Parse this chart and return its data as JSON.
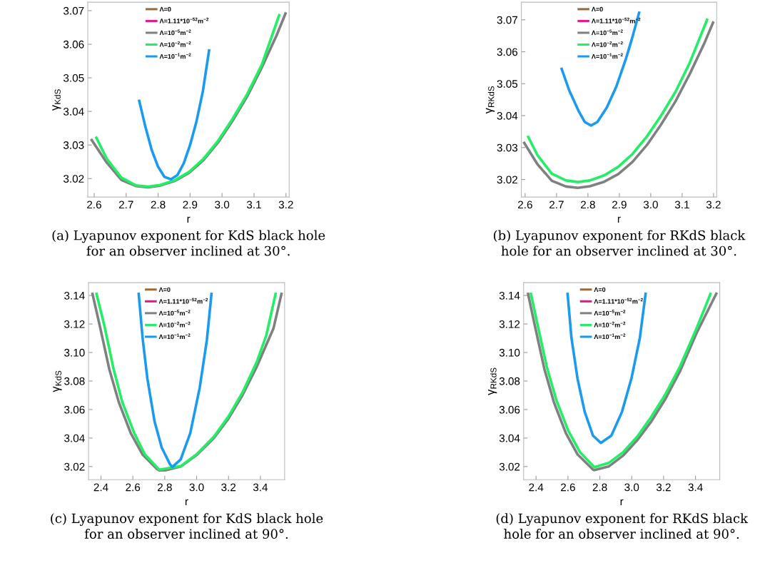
{
  "chart_data": [
    {
      "type": "line",
      "xlabel": "r",
      "ylabel": "γ$_{KdS}$",
      "xlim": [
        2.58,
        3.21
      ],
      "xticks": [
        {
          "value": 2.6,
          "label": "2.6"
        },
        {
          "value": 2.7,
          "label": "2.7"
        },
        {
          "value": 2.8,
          "label": "2.8"
        },
        {
          "value": 2.9,
          "label": "2.9"
        },
        {
          "value": 3.0,
          "label": "3.0"
        },
        {
          "value": 3.1,
          "label": "3.1"
        },
        {
          "value": 3.2,
          "label": "3.2"
        }
      ],
      "ylim": [
        3.0145,
        3.0725
      ],
      "yticks": [
        3.02,
        3.03,
        3.04,
        3.05,
        3.06,
        3.07
      ],
      "legend": "top",
      "grid": false,
      "annotations": [
        "(a) Lyapunov exponent for KdS black hole\nfor an observer inclined at 30°."
      ],
      "series": [
        {
          "name": "Λ=0",
          "color": "#9c6b3a"
        },
        {
          "name": "Λ=1.11*10$^{−52}$m$^{−2}$",
          "color": "#e8168c"
        },
        {
          "name": "Λ=10$^{−5}$m$^{−2}$",
          "color": "#808080",
          "x": [
            2.59,
            2.639,
            2.685,
            2.73,
            2.768,
            2.806,
            2.852,
            2.897,
            2.942,
            2.988,
            3.033,
            3.079,
            3.124,
            3.17,
            3.2
          ],
          "values": [
            3.0318,
            3.0248,
            3.0196,
            3.0178,
            3.0174,
            3.0179,
            3.0193,
            3.0217,
            3.0255,
            3.0308,
            3.0372,
            3.0445,
            3.053,
            3.0625,
            3.0695
          ]
        },
        {
          "name": "Λ=10$^{−2}$m$^{−2}$",
          "color": "#22ee66",
          "x": [
            2.605,
            2.64,
            2.685,
            2.73,
            2.768,
            2.806,
            2.852,
            2.897,
            2.942,
            2.988,
            3.033,
            3.079,
            3.124,
            3.18
          ],
          "values": [
            3.0325,
            3.0258,
            3.0203,
            3.018,
            3.0176,
            3.0181,
            3.0195,
            3.022,
            3.0259,
            3.0313,
            3.0378,
            3.0452,
            3.0538,
            3.069
          ]
        },
        {
          "name": "Λ=10$^{−1}$m$^{−2}$",
          "color": "#1a9af0",
          "x": [
            2.74,
            2.76,
            2.78,
            2.8,
            2.82,
            2.84,
            2.86,
            2.88,
            2.9,
            2.92,
            2.94,
            2.96
          ],
          "values": [
            3.0435,
            3.0355,
            3.0285,
            3.0235,
            3.0205,
            3.0198,
            3.021,
            3.0245,
            3.03,
            3.037,
            3.046,
            3.0585
          ]
        }
      ]
    },
    {
      "type": "line",
      "xlabel": "r",
      "ylabel": "γ$_{RKdS}$",
      "xlim": [
        2.588,
        3.21
      ],
      "xticks": [
        {
          "value": 2.6,
          "label": "2.6"
        },
        {
          "value": 2.7,
          "label": "2.7"
        },
        {
          "value": 2.8,
          "label": "2.8"
        },
        {
          "value": 2.9,
          "label": "2.9"
        },
        {
          "value": 3.0,
          "label": "3.0"
        },
        {
          "value": 3.1,
          "label": "3.1"
        },
        {
          "value": 3.2,
          "label": "3.2"
        }
      ],
      "ylim": [
        3.0145,
        3.0755
      ],
      "yticks": [
        3.02,
        3.03,
        3.04,
        3.05,
        3.06,
        3.07
      ],
      "legend": "top",
      "grid": false,
      "annotations": [
        "(b) Lyapunov exponent for RKdS black\nhole for an observer inclined at 30°."
      ],
      "series": [
        {
          "name": "Λ=0",
          "color": "#9c6b3a"
        },
        {
          "name": "Λ=1.11*10$^{−52}$m$^{−2}$",
          "color": "#e8168c"
        },
        {
          "name": "Λ=10$^{−5}$m$^{−2}$",
          "color": "#808080",
          "x": [
            2.595,
            2.639,
            2.685,
            2.73,
            2.768,
            2.806,
            2.852,
            2.897,
            2.942,
            2.988,
            3.033,
            3.079,
            3.124,
            3.17,
            3.2
          ],
          "values": [
            3.0318,
            3.0248,
            3.0196,
            3.0178,
            3.0174,
            3.0179,
            3.0193,
            3.0217,
            3.0255,
            3.0308,
            3.0372,
            3.0445,
            3.053,
            3.0625,
            3.0695
          ]
        },
        {
          "name": "Λ=10$^{−2}$m$^{−2}$",
          "color": "#22ee66",
          "x": [
            2.608,
            2.64,
            2.685,
            2.73,
            2.768,
            2.806,
            2.852,
            2.897,
            2.942,
            2.988,
            3.033,
            3.079,
            3.124,
            3.181
          ],
          "values": [
            3.0337,
            3.0275,
            3.0218,
            3.0197,
            3.0192,
            3.0197,
            3.0213,
            3.024,
            3.028,
            3.0335,
            3.04,
            3.0475,
            3.0565,
            3.0704
          ]
        },
        {
          "name": "Λ=10$^{−1}$m$^{−2}$",
          "color": "#1a9af0",
          "x": [
            2.715,
            2.74,
            2.77,
            2.79,
            2.81,
            2.83,
            2.86,
            2.89,
            2.92,
            2.94,
            2.964
          ],
          "values": [
            3.055,
            3.048,
            3.0415,
            3.038,
            3.0369,
            3.038,
            3.0425,
            3.049,
            3.0575,
            3.064,
            3.0726
          ]
        }
      ]
    },
    {
      "type": "line",
      "xlabel": "r",
      "ylabel": "γ$_{KdS}$",
      "xlim": [
        2.322,
        3.552
      ],
      "xticks": [
        {
          "value": 2.4,
          "label": "2.4"
        },
        {
          "value": 2.6,
          "label": "2.6"
        },
        {
          "value": 2.8,
          "label": "2.8"
        },
        {
          "value": 3.0,
          "label": "3.0"
        },
        {
          "value": 3.2,
          "label": "3.2"
        },
        {
          "value": 3.4,
          "label": "3.4"
        }
      ],
      "ylim": [
        3.0108,
        3.149
      ],
      "yticks": [
        3.02,
        3.04,
        3.06,
        3.08,
        {
          "value": 3.1,
          "label": "3.10"
        },
        3.12,
        3.14
      ],
      "legend": "top",
      "grid": false,
      "annotations": [
        "(c) Lyapunov exponent for KdS black hole\nfor an observer inclined at 90°."
      ],
      "series": [
        {
          "name": "Λ=0",
          "color": "#9c6b3a"
        },
        {
          "name": "Λ=1.11*10$^{−52}$m$^{−2}$",
          "color": "#e8168c"
        },
        {
          "name": "Λ=10$^{−5}$m$^{−2}$",
          "color": "#808080",
          "x": [
            2.345,
            2.393,
            2.452,
            2.512,
            2.587,
            2.661,
            2.751,
            2.766,
            2.81,
            2.9,
            3.004,
            3.109,
            3.199,
            3.288,
            3.378,
            3.482,
            3.534
          ],
          "values": [
            3.142,
            3.1185,
            3.0884,
            3.0651,
            3.0434,
            3.0284,
            3.0183,
            3.0173,
            3.0175,
            3.02,
            3.0284,
            3.0401,
            3.0535,
            3.0701,
            3.0902,
            3.1169,
            3.142
          ]
        },
        {
          "name": "Λ=10$^{−2}$m$^{−2}$",
          "color": "#22ee66",
          "x": [
            2.37,
            2.422,
            2.479,
            2.534,
            2.609,
            2.676,
            2.766,
            2.9,
            3.004,
            3.109,
            3.199,
            3.288,
            3.378,
            3.437,
            3.497
          ],
          "values": [
            3.142,
            3.1185,
            3.0884,
            3.0651,
            3.0434,
            3.0284,
            3.0178,
            3.0203,
            3.029,
            3.041,
            3.055,
            3.072,
            3.0935,
            3.112,
            3.142
          ]
        },
        {
          "name": "Λ=10$^{−1}$m$^{−2}$",
          "color": "#1a9af0",
          "x": [
            2.636,
            2.661,
            2.691,
            2.736,
            2.781,
            2.833,
            2.848,
            2.9,
            2.96,
            3.019,
            3.064,
            3.094
          ],
          "values": [
            3.142,
            3.1102,
            3.0817,
            3.0517,
            3.0333,
            3.0216,
            3.0197,
            3.025,
            3.0434,
            3.0751,
            3.1085,
            3.142
          ]
        }
      ]
    },
    {
      "type": "line",
      "xlabel": "r",
      "ylabel": "γ$_{RKdS}$",
      "xlim": [
        2.322,
        3.552
      ],
      "xticks": [
        {
          "value": 2.4,
          "label": "2.4"
        },
        {
          "value": 2.6,
          "label": "2.6"
        },
        {
          "value": 2.8,
          "label": "2.8"
        },
        {
          "value": 3.0,
          "label": "3.0"
        },
        {
          "value": 3.2,
          "label": "3.2"
        },
        {
          "value": 3.4,
          "label": "3.4"
        }
      ],
      "ylim": [
        3.0108,
        3.149
      ],
      "yticks": [
        3.02,
        3.04,
        3.06,
        3.08,
        {
          "value": 3.1,
          "label": "3.10"
        },
        3.12,
        3.14
      ],
      "legend": "top",
      "grid": false,
      "annotations": [
        "(d) Lyapunov exponent for RKdS black\nhole for an observer inclined at 90°."
      ],
      "series": [
        {
          "name": "Λ=0",
          "color": "#9c6b3a"
        },
        {
          "name": "Λ=1.11*10$^{−52}$m$^{−2}$",
          "color": "#e8168c"
        },
        {
          "name": "Λ=10$^{−5}$m$^{−2}$",
          "color": "#808080",
          "x": [
            2.348,
            2.393,
            2.452,
            2.512,
            2.587,
            2.661,
            2.758,
            2.766,
            2.855,
            2.945,
            3.034,
            3.124,
            3.213,
            3.303,
            3.407,
            3.534
          ],
          "values": [
            3.142,
            3.1185,
            3.0884,
            3.0651,
            3.0434,
            3.0284,
            3.0178,
            3.0175,
            3.02,
            3.0276,
            3.0384,
            3.0518,
            3.0677,
            3.0869,
            3.1136,
            3.142
          ]
        },
        {
          "name": "Λ=10$^{−2}$m$^{−2}$",
          "color": "#22ee66",
          "x": [
            2.366,
            2.408,
            2.467,
            2.527,
            2.602,
            2.676,
            2.766,
            2.855,
            2.945,
            3.034,
            3.124,
            3.213,
            3.303,
            3.407,
            3.497
          ],
          "values": [
            3.142,
            3.1202,
            3.09,
            3.0667,
            3.0451,
            3.03,
            3.0195,
            3.0225,
            3.03,
            3.0409,
            3.0551,
            3.071,
            3.0902,
            3.117,
            3.142
          ]
        },
        {
          "name": "Λ=10$^{−1}$m$^{−2}$",
          "color": "#1a9af0",
          "x": [
            2.597,
            2.622,
            2.66,
            2.705,
            2.757,
            2.806,
            2.872,
            2.939,
            2.998,
            3.051,
            3.088
          ],
          "values": [
            3.142,
            3.1102,
            3.0817,
            3.0584,
            3.0417,
            3.0366,
            3.0417,
            3.0584,
            3.0817,
            3.1102,
            3.142
          ]
        }
      ]
    }
  ]
}
